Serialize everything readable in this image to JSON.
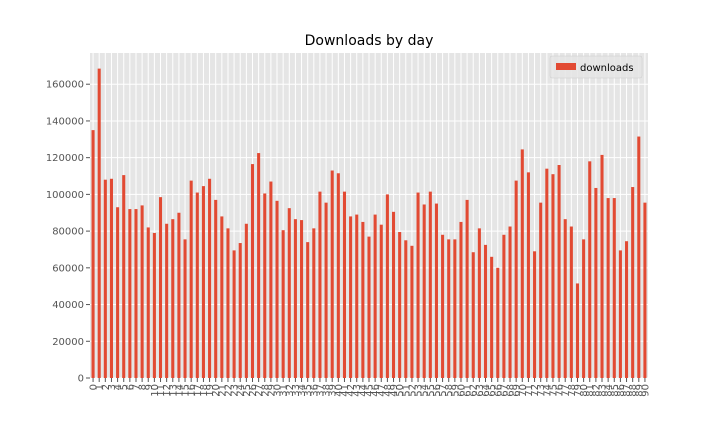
{
  "chart_data": {
    "type": "bar",
    "title": "Downloads by day",
    "xlabel": "",
    "ylabel": "",
    "ylim": [
      0,
      177000
    ],
    "yticks": [
      0,
      20000,
      40000,
      60000,
      80000,
      100000,
      120000,
      140000,
      160000
    ],
    "grid": true,
    "legend_position": "top-right",
    "colors": {
      "bar": "#E24A33",
      "plot_bg": "#E5E5E5",
      "grid": "#FFFFFF",
      "tick": "#555555"
    },
    "categories": [
      "0",
      "1",
      "2",
      "3",
      "4",
      "5",
      "6",
      "7",
      "8",
      "9",
      "10",
      "11",
      "12",
      "13",
      "14",
      "15",
      "16",
      "17",
      "18",
      "19",
      "20",
      "21",
      "22",
      "23",
      "24",
      "25",
      "26",
      "27",
      "28",
      "29",
      "30",
      "31",
      "32",
      "33",
      "34",
      "35",
      "36",
      "37",
      "38",
      "39",
      "40",
      "41",
      "42",
      "43",
      "44",
      "45",
      "46",
      "47",
      "48",
      "49",
      "50",
      "51",
      "52",
      "53",
      "54",
      "55",
      "56",
      "57",
      "58",
      "59",
      "60",
      "61",
      "62",
      "63",
      "64",
      "65",
      "66",
      "67",
      "68",
      "69",
      "70",
      "71",
      "72",
      "73",
      "74",
      "75",
      "76",
      "77",
      "78",
      "79",
      "80",
      "81",
      "82",
      "83",
      "84",
      "85",
      "86",
      "87",
      "88",
      "89",
      "90"
    ],
    "series": [
      {
        "name": "downloads",
        "values": [
          135000,
          168500,
          108000,
          108500,
          93000,
          110500,
          92000,
          92000,
          94000,
          82000,
          79000,
          98500,
          84000,
          86500,
          90000,
          75500,
          107500,
          101000,
          104500,
          108500,
          97000,
          88000,
          81500,
          69500,
          73500,
          84000,
          116500,
          122500,
          100500,
          107000,
          96500,
          80500,
          92500,
          86500,
          86000,
          74000,
          81500,
          101500,
          95500,
          113000,
          111500,
          101500,
          88000,
          89000,
          85000,
          77000,
          89000,
          83500,
          100000,
          90500,
          79500,
          75000,
          72000,
          101000,
          94500,
          101500,
          95000,
          78000,
          75500,
          75500,
          85000,
          97000,
          68500,
          81500,
          72500,
          66000,
          60000,
          78000,
          82500,
          107500,
          124500,
          112000,
          69000,
          95500,
          114000,
          111000,
          116000,
          86500,
          82500,
          51500,
          75500,
          118000,
          103500,
          121500,
          98000,
          98000,
          69500,
          74500,
          104000,
          131500,
          95500
        ]
      }
    ]
  }
}
